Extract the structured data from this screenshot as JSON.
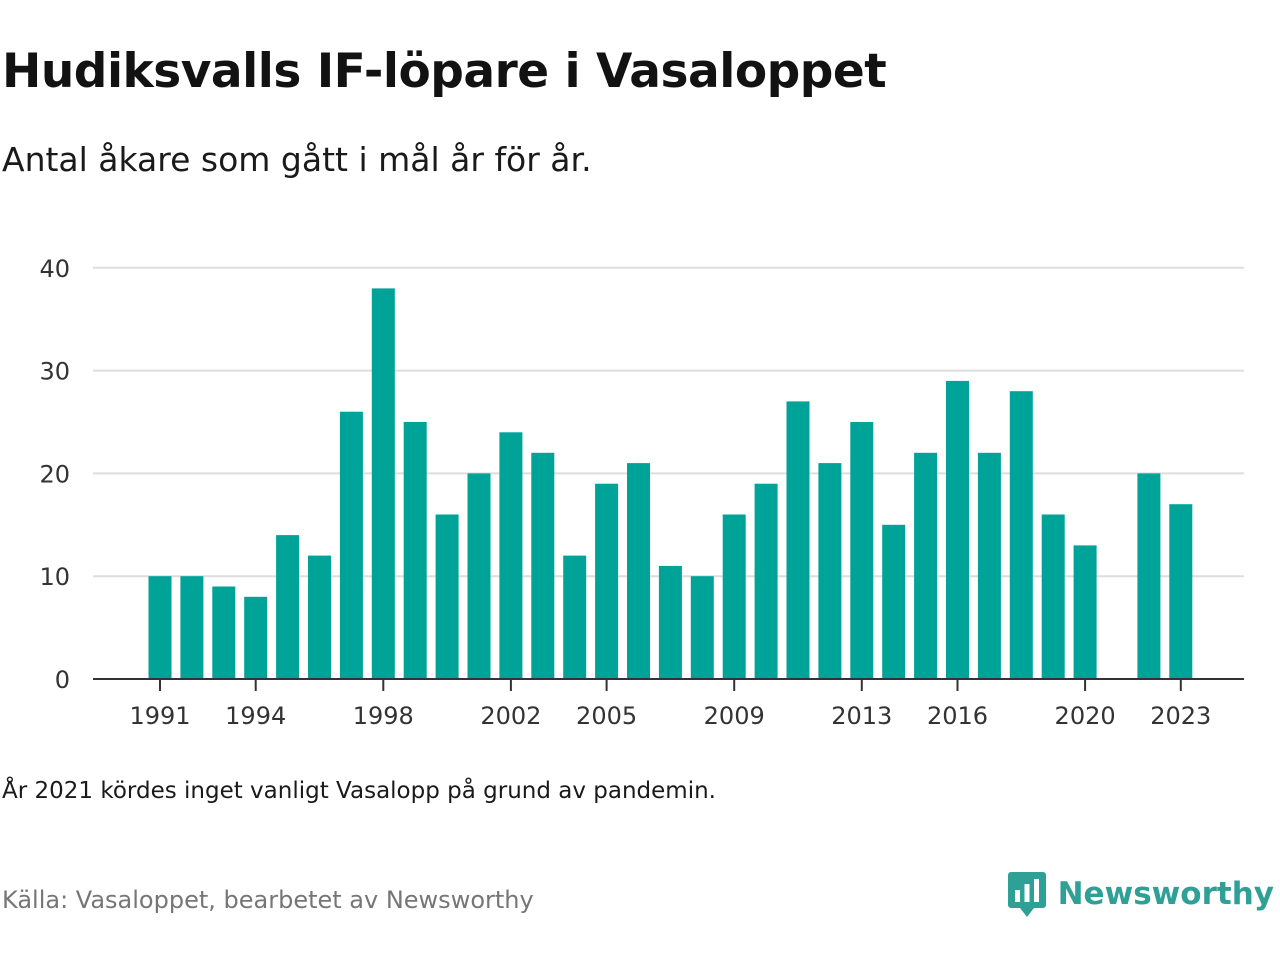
{
  "title": "Hudiksvalls IF-löpare i Vasaloppet",
  "subtitle": "Antal åkare som gått i mål år för år.",
  "note": "År 2021 kördes inget vanligt Vasalopp på grund av pandemin.",
  "source": "Källa: Vasaloppet, bearbetet av Newsworthy",
  "brand": {
    "name": "Newsworthy",
    "icon": "newsworthy-logo-icon",
    "color": "#2ea096"
  },
  "colors": {
    "bar": "#00a398",
    "grid": "#dddddd",
    "axis": "#333333",
    "tick_text": "#333333"
  },
  "chart_data": {
    "type": "bar",
    "title": "Hudiksvalls IF-löpare i Vasaloppet",
    "subtitle": "Antal åkare som gått i mål år för år.",
    "xlabel": "",
    "ylabel": "",
    "ylim": [
      0,
      40
    ],
    "yticks": [
      0,
      10,
      20,
      30,
      40
    ],
    "xtick_labels": [
      1991,
      1994,
      1998,
      2002,
      2005,
      2009,
      2013,
      2016,
      2020,
      2023
    ],
    "grid": true,
    "legend": "none",
    "categories": [
      1991,
      1992,
      1993,
      1994,
      1995,
      1996,
      1997,
      1998,
      1999,
      2000,
      2001,
      2002,
      2003,
      2004,
      2005,
      2006,
      2007,
      2008,
      2009,
      2010,
      2011,
      2012,
      2013,
      2014,
      2015,
      2016,
      2017,
      2018,
      2019,
      2020,
      2021,
      2022,
      2023
    ],
    "values": [
      10,
      10,
      9,
      8,
      14,
      12,
      26,
      38,
      25,
      16,
      20,
      24,
      22,
      12,
      19,
      21,
      11,
      10,
      16,
      19,
      27,
      21,
      25,
      15,
      22,
      29,
      22,
      28,
      16,
      13,
      null,
      20,
      17
    ]
  }
}
